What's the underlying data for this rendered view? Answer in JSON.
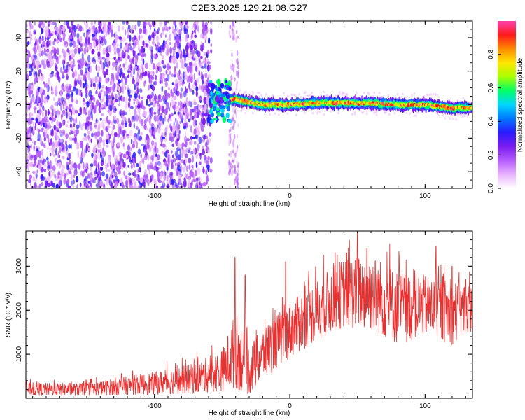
{
  "title": "C2E3.2025.129.21.08.G27",
  "colors": {
    "snr_line": "#e83030",
    "axis": "#000000",
    "colormap": [
      "#ffffff",
      "#e9b3ff",
      "#b55cff",
      "#7b1cf0",
      "#2a1bff",
      "#0077ff",
      "#00d7ff",
      "#00ff66",
      "#a8ff00",
      "#ffe600",
      "#ff8a00",
      "#ff1a1a",
      "#ff3fb0"
    ]
  },
  "chart_data": [
    {
      "type": "heatmap",
      "xlabel": "Height of straight line (km)",
      "ylabel": "Frequency (Hz)",
      "xlim": [
        -195,
        135
      ],
      "ylim": [
        -50,
        50
      ],
      "xticks": [
        -100,
        0,
        100
      ],
      "xtick_labels": [
        "-100",
        "0",
        "100"
      ],
      "yticks": [
        -40,
        -20,
        0,
        20,
        40
      ],
      "ytick_labels": [
        "-40",
        "-20",
        "0",
        "20",
        "40"
      ],
      "colorbar": {
        "label": "Normalized spectral amplitude",
        "range": [
          0,
          1
        ],
        "ticks": [
          0.0,
          0.2,
          0.4,
          0.6,
          0.8
        ],
        "tick_labels": [
          "0.0",
          "0.2",
          "0.4",
          "0.6",
          "0.8"
        ]
      },
      "ridge": {
        "x_start": -55,
        "x_end": 135,
        "center_hz": [
          {
            "x": -55,
            "y": 4
          },
          {
            "x": -40,
            "y": 3
          },
          {
            "x": -20,
            "y": 0
          },
          {
            "x": 0,
            "y": 0
          },
          {
            "x": 20,
            "y": 1
          },
          {
            "x": 40,
            "y": 1
          },
          {
            "x": 60,
            "y": 1
          },
          {
            "x": 80,
            "y": 0
          },
          {
            "x": 100,
            "y": 0
          },
          {
            "x": 120,
            "y": -2
          },
          {
            "x": 135,
            "y": -2
          }
        ]
      },
      "noise_region": {
        "x_start": -195,
        "x_end": -58
      },
      "scattered_region": {
        "x_start": -45,
        "x_end": -38
      }
    },
    {
      "type": "line",
      "xlabel": "Height of straight line (km)",
      "ylabel": "SNR (10 * v/v)",
      "xlim": [
        -195,
        135
      ],
      "ylim": [
        0,
        3800
      ],
      "xticks": [
        -100,
        0,
        100
      ],
      "xtick_labels": [
        "-100",
        "0",
        "100"
      ],
      "yticks": [
        1000,
        2000,
        3000
      ],
      "ytick_labels": [
        "1000",
        "2000",
        "3000"
      ],
      "envelope": [
        {
          "x": -195,
          "low": 50,
          "high": 350
        },
        {
          "x": -150,
          "low": 50,
          "high": 350
        },
        {
          "x": -100,
          "low": 80,
          "high": 600
        },
        {
          "x": -70,
          "low": 100,
          "high": 800
        },
        {
          "x": -50,
          "low": 150,
          "high": 1100
        },
        {
          "x": -40,
          "low": 200,
          "high": 2000
        },
        {
          "x": -30,
          "low": 50,
          "high": 1200
        },
        {
          "x": -20,
          "low": 400,
          "high": 1600
        },
        {
          "x": 0,
          "low": 900,
          "high": 2200
        },
        {
          "x": 20,
          "low": 1300,
          "high": 2700
        },
        {
          "x": 40,
          "low": 1600,
          "high": 3200
        },
        {
          "x": 60,
          "low": 1500,
          "high": 3300
        },
        {
          "x": 80,
          "low": 1200,
          "high": 2900
        },
        {
          "x": 100,
          "low": 1400,
          "high": 2800
        },
        {
          "x": 120,
          "low": 1200,
          "high": 2700
        },
        {
          "x": 135,
          "low": 1500,
          "high": 2600
        }
      ],
      "spikes": [
        {
          "x": -40.5,
          "y": 3200
        },
        {
          "x": -33,
          "y": 2800
        },
        {
          "x": -3,
          "y": 3100
        },
        {
          "x": 42,
          "y": 3300
        },
        {
          "x": 50,
          "y": 3750
        },
        {
          "x": 57,
          "y": 3400
        },
        {
          "x": 108,
          "y": 3450
        },
        {
          "x": 120,
          "y": 3000
        },
        {
          "x": 130,
          "y": 2700
        }
      ]
    }
  ]
}
